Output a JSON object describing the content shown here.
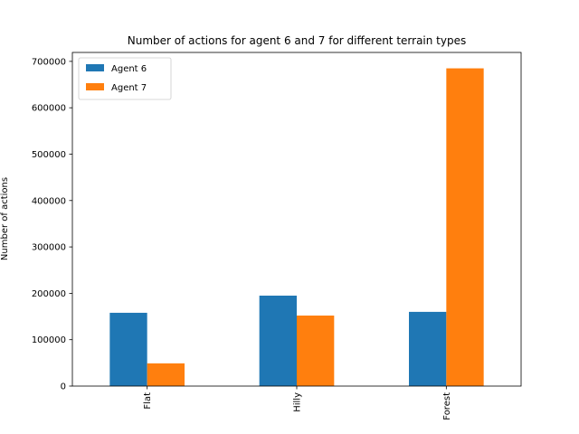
{
  "chart_data": {
    "type": "bar",
    "title": "Number of actions for agent 6 and 7 for different terrain types",
    "xlabel": "",
    "ylabel": "Number of actions",
    "categories": [
      "Flat",
      "Hilly",
      "Forest"
    ],
    "series": [
      {
        "name": "Agent 6",
        "color": "#1f77b4",
        "values": [
          158000,
          195000,
          160000
        ]
      },
      {
        "name": "Agent 7",
        "color": "#ff7f0e",
        "values": [
          49000,
          152000,
          685000
        ]
      }
    ],
    "ylim": [
      0,
      719250
    ],
    "yticks": [
      0,
      100000,
      200000,
      300000,
      400000,
      500000,
      600000,
      700000
    ],
    "ytick_labels": [
      "0",
      "100000",
      "200000",
      "300000",
      "400000",
      "500000",
      "600000",
      "700000"
    ],
    "xtick_rotation": 90,
    "grid": false,
    "legend_position": "top-left"
  }
}
